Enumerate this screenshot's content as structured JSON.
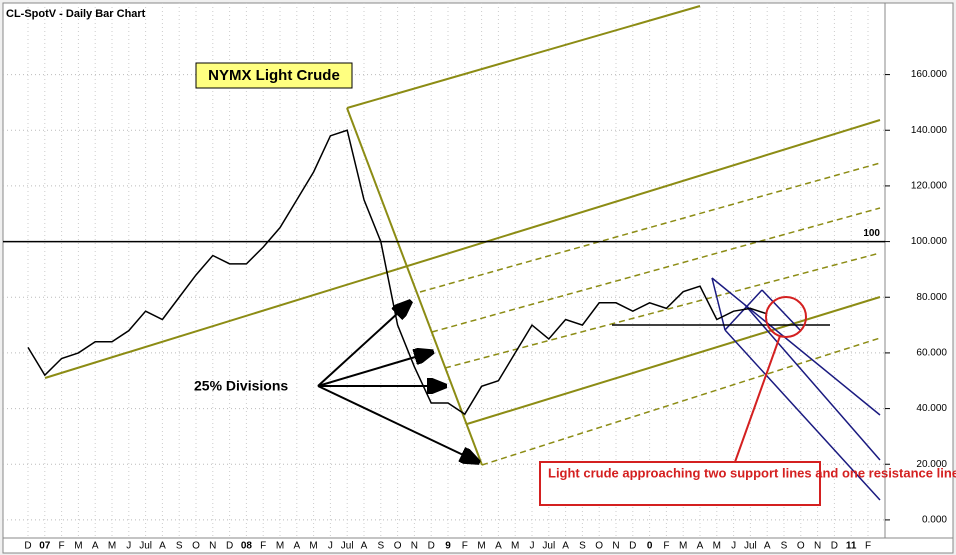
{
  "chart_data": {
    "type": "line",
    "title": "CL-SpotV - Daily Bar Chart",
    "annotations": {
      "box_title": "NYMX Light Crude",
      "divisions": "25% Divisions",
      "note": "Light crude approaching two support lines and one resistance line."
    },
    "categories": [
      "D",
      "07",
      "F",
      "M",
      "A",
      "M",
      "J",
      "Jul",
      "A",
      "S",
      "O",
      "N",
      "D",
      "08",
      "F",
      "M",
      "A",
      "M",
      "J",
      "Jul",
      "A",
      "S",
      "O",
      "N",
      "D",
      "9",
      "F",
      "M",
      "A",
      "M",
      "J",
      "Jul",
      "A",
      "S",
      "O",
      "N",
      "D",
      "0",
      "F",
      "M",
      "A",
      "M",
      "J",
      "Jul",
      "A",
      "S",
      "O",
      "N",
      "D",
      "11",
      "F"
    ],
    "series": [
      {
        "name": "CL-SpotV",
        "color": "#000000",
        "values": [
          62,
          52,
          58,
          60,
          64,
          64,
          68,
          75,
          72,
          80,
          88,
          95,
          92,
          92,
          98,
          105,
          115,
          125,
          138,
          140,
          115,
          100,
          70,
          55,
          42,
          42,
          38,
          48,
          50,
          60,
          70,
          65,
          72,
          70,
          78,
          78,
          75,
          78,
          76,
          82,
          84,
          72,
          75,
          76,
          74,
          null,
          null,
          null,
          null,
          null,
          null
        ]
      }
    ],
    "reference_line": {
      "value": 100,
      "label": "100"
    },
    "ylim": [
      -6.5,
      185
    ],
    "yticks": [
      {
        "value": 0,
        "label": "0.000"
      },
      {
        "value": 20,
        "label": "20.000"
      },
      {
        "value": 40,
        "label": "40.000"
      },
      {
        "value": 60,
        "label": "60.000"
      },
      {
        "value": 80,
        "label": "80.000"
      },
      {
        "value": 100,
        "label": "100.000"
      },
      {
        "value": 120,
        "label": "120.000"
      },
      {
        "value": 140,
        "label": "140.000"
      },
      {
        "value": 160,
        "label": "160.000"
      }
    ],
    "grid": true
  }
}
